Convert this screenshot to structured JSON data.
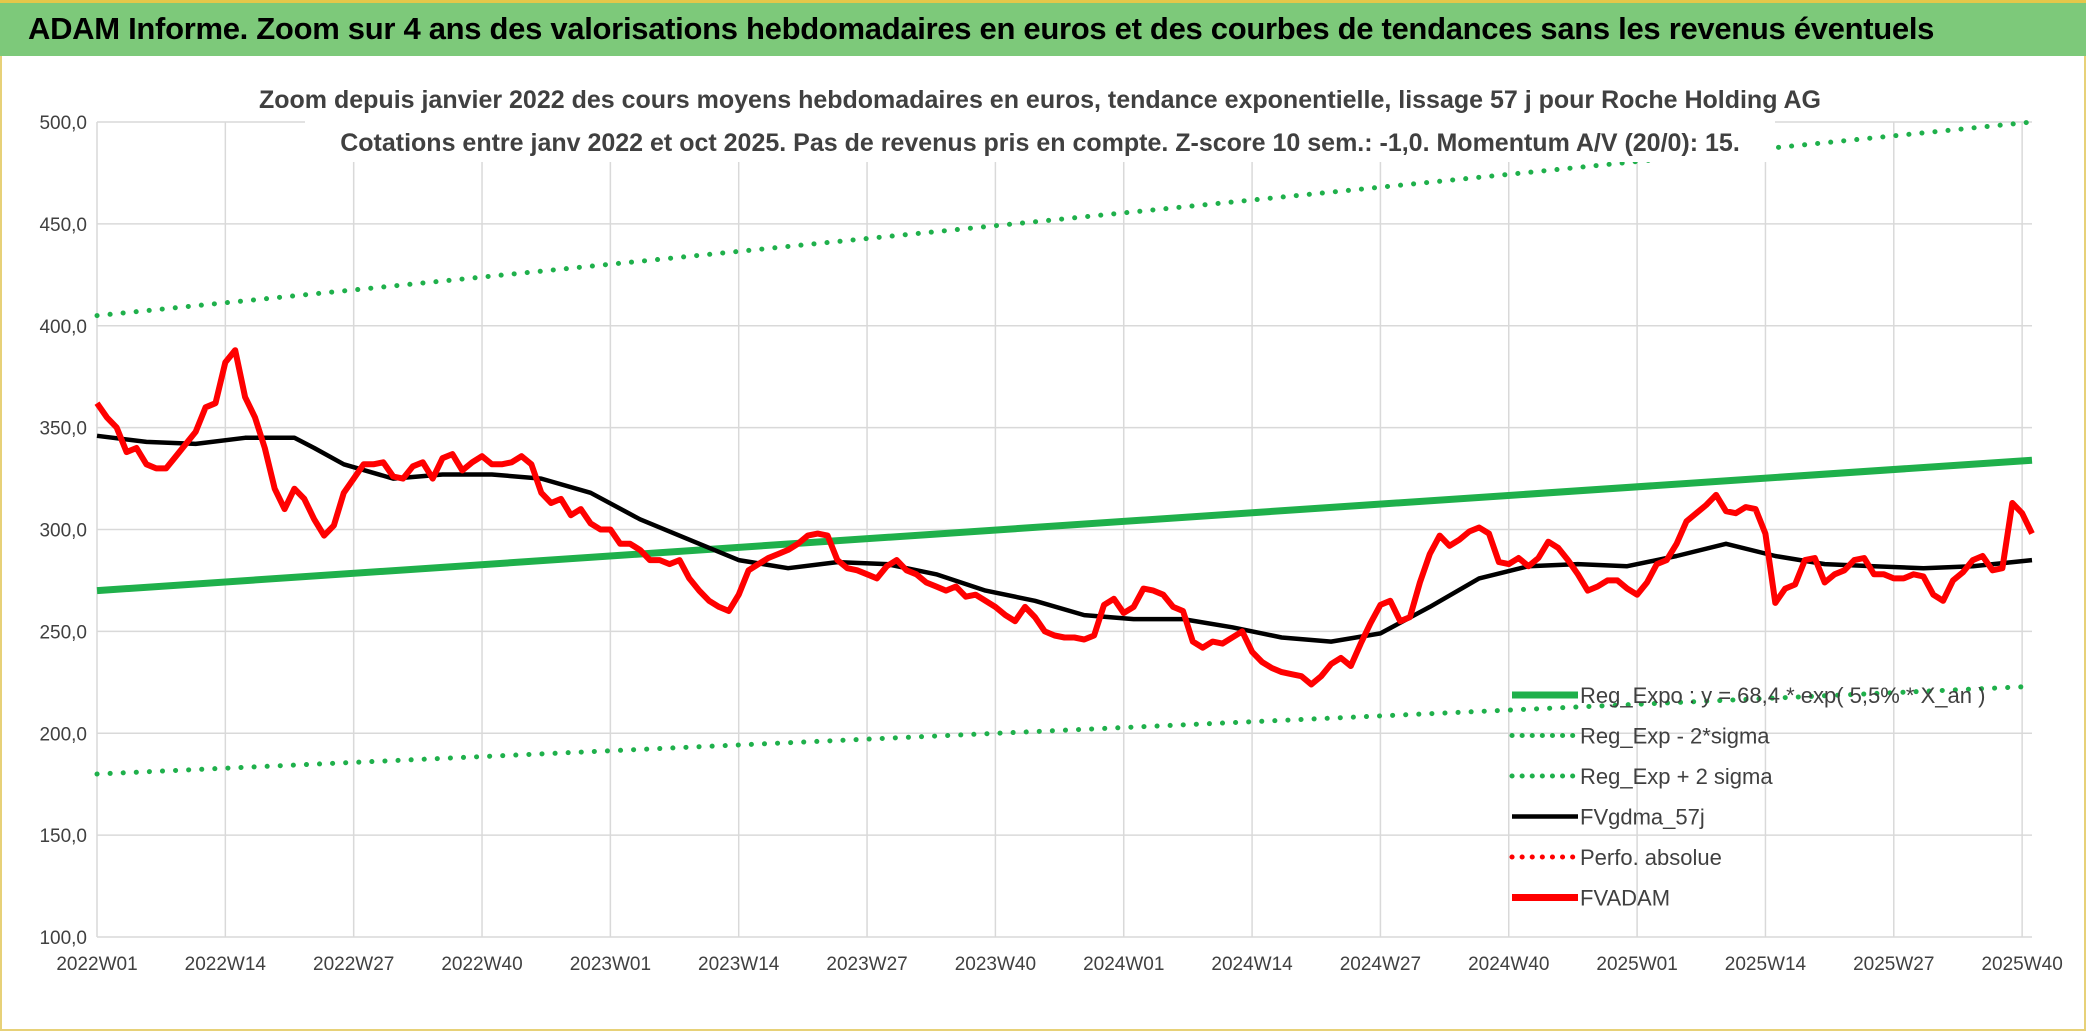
{
  "banner": {
    "title": "ADAM Informe. Zoom sur 4 ans des valorisations hebdomadaires en euros et des courbes de tendances sans les revenus éventuels"
  },
  "colors": {
    "banner": "#7dc97a",
    "reg_expo": "#1fb04b",
    "price": "#ff0000",
    "smooth": "#000000",
    "grid": "#d9d9d9"
  },
  "chart_data": {
    "type": "line",
    "title": "Zoom depuis janvier 2022 des cours moyens hebdomadaires en euros, tendance exponentielle, lissage 57 j pour Roche Holding AG",
    "subtitle": "Cotations entre janv 2022 et oct 2025. Pas de revenus pris en compte. Z-score 10 sem.: -1,0. Momentum A/V (20/0): 15.",
    "xlabel": "",
    "ylabel": "",
    "x_categories": [
      "2022W01",
      "2022W14",
      "2022W27",
      "2022W40",
      "2023W01",
      "2023W14",
      "2023W27",
      "2023W40",
      "2024W01",
      "2024W14",
      "2024W27",
      "2024W40",
      "2025W01",
      "2025W14",
      "2025W27",
      "2025W40"
    ],
    "x_range_weeks": [
      0,
      196
    ],
    "ylim": [
      100,
      500
    ],
    "yticks": [
      "100,0",
      "150,0",
      "200,0",
      "250,0",
      "300,0",
      "350,0",
      "400,0",
      "450,0",
      "500,0"
    ],
    "grid": true,
    "legend_position": "bottom-right",
    "legend": [
      {
        "label": "Reg_Expo : y = 68,4 * exp( 5,5% * X_an )",
        "style": "solid-thick",
        "color": "#1fb04b"
      },
      {
        "label": "Reg_Exp - 2*sigma",
        "style": "dotted",
        "color": "#1fb04b"
      },
      {
        "label": "Reg_Exp + 2 sigma",
        "style": "dotted",
        "color": "#1fb04b"
      },
      {
        "label": "FVgdma_57j",
        "style": "solid",
        "color": "#000000"
      },
      {
        "label": "Perfo. absolue",
        "style": "dotted",
        "color": "#ff0000"
      },
      {
        "label": "FVADAM",
        "style": "solid-thick",
        "color": "#ff0000"
      }
    ],
    "series": [
      {
        "name": "Reg_Expo : y = 68,4 * exp( 5,5% * X_an )",
        "x": [
          0,
          196
        ],
        "values": [
          270,
          334
        ]
      },
      {
        "name": "Reg_Exp - 2*sigma",
        "x": [
          0,
          196
        ],
        "values": [
          180,
          223
        ]
      },
      {
        "name": "Reg_Exp + 2 sigma",
        "x": [
          0,
          196
        ],
        "values": [
          405,
          500
        ]
      },
      {
        "name": "FVgdma_57j",
        "x": [
          0,
          5,
          10,
          15,
          20,
          22,
          25,
          30,
          35,
          40,
          45,
          50,
          55,
          60,
          65,
          70,
          75,
          80,
          85,
          90,
          95,
          100,
          105,
          110,
          115,
          120,
          125,
          130,
          135,
          140,
          145,
          150,
          155,
          160,
          165,
          170,
          175,
          180,
          185,
          190,
          196
        ],
        "values": [
          346,
          343,
          342,
          345,
          345,
          340,
          332,
          325,
          327,
          327,
          325,
          318,
          305,
          295,
          285,
          281,
          284,
          283,
          278,
          270,
          265,
          258,
          256,
          256,
          252,
          247,
          245,
          249,
          262,
          276,
          282,
          283,
          282,
          287,
          293,
          287,
          283,
          282,
          281,
          282,
          285
        ]
      },
      {
        "name": "FVADAM",
        "x": [
          0,
          1,
          2,
          3,
          4,
          5,
          6,
          7,
          8,
          9,
          10,
          11,
          12,
          13,
          14,
          15,
          16,
          17,
          18,
          19,
          20,
          21,
          22,
          23,
          24,
          25,
          26,
          27,
          28,
          29,
          30,
          31,
          32,
          33,
          34,
          35,
          36,
          37,
          38,
          39,
          40,
          41,
          42,
          43,
          44,
          45,
          46,
          47,
          48,
          49,
          50,
          51,
          52,
          53,
          54,
          55,
          56,
          57,
          58,
          59,
          60,
          61,
          62,
          63,
          64,
          65,
          66,
          67,
          68,
          69,
          70,
          71,
          72,
          73,
          74,
          75,
          76,
          77,
          78,
          79,
          80,
          81,
          82,
          83,
          84,
          85,
          86,
          87,
          88,
          89,
          90,
          91,
          92,
          93,
          94,
          95,
          96,
          97,
          98,
          99,
          100,
          101,
          102,
          103,
          104,
          105,
          106,
          107,
          108,
          109,
          110,
          111,
          112,
          113,
          114,
          115,
          116,
          117,
          118,
          119,
          120,
          121,
          122,
          123,
          124,
          125,
          126,
          127,
          128,
          129,
          130,
          131,
          132,
          133,
          134,
          135,
          136,
          137,
          138,
          139,
          140,
          141,
          142,
          143,
          144,
          145,
          146,
          147,
          148,
          149,
          150,
          151,
          152,
          153,
          154,
          155,
          156,
          157,
          158,
          159,
          160,
          161,
          162,
          163,
          164,
          165,
          166,
          167,
          168,
          169,
          170,
          171,
          172,
          173,
          174,
          175,
          176,
          177,
          178,
          179,
          180,
          181,
          182,
          183,
          184,
          185,
          186,
          187,
          188,
          189,
          190,
          191,
          192,
          193,
          194,
          195,
          196
        ],
        "values": [
          362,
          355,
          350,
          338,
          340,
          332,
          330,
          330,
          336,
          342,
          348,
          360,
          362,
          382,
          388,
          365,
          355,
          340,
          320,
          310,
          320,
          315,
          305,
          297,
          302,
          318,
          325,
          332,
          332,
          333,
          326,
          325,
          331,
          333,
          325,
          335,
          337,
          329,
          333,
          336,
          332,
          332,
          333,
          336,
          332,
          318,
          313,
          315,
          307,
          310,
          303,
          300,
          300,
          293,
          293,
          290,
          285,
          285,
          283,
          285,
          276,
          270,
          265,
          262,
          260,
          268,
          280,
          283,
          286,
          288,
          290,
          293,
          297,
          298,
          297,
          285,
          281,
          280,
          278,
          276,
          282,
          285,
          280,
          278,
          274,
          272,
          270,
          272,
          267,
          268,
          265,
          262,
          258,
          255,
          262,
          257,
          250,
          248,
          247,
          247,
          246,
          248,
          263,
          266,
          259,
          262,
          271,
          270,
          268,
          262,
          260,
          245,
          242,
          245,
          244,
          247,
          250,
          240,
          235,
          232,
          230,
          229,
          228,
          224,
          228,
          234,
          237,
          233,
          244,
          254,
          263,
          265,
          255,
          257,
          274,
          288,
          297,
          292,
          295,
          299,
          301,
          298,
          284,
          283,
          286,
          282,
          286,
          294,
          291,
          285,
          278,
          270,
          272,
          275,
          275,
          271,
          268,
          274,
          283,
          285,
          293,
          304,
          308,
          312,
          317,
          309,
          308,
          311,
          310,
          298,
          264,
          271,
          273,
          285,
          286,
          274,
          278,
          280,
          285,
          286,
          278,
          278,
          276,
          276,
          278,
          277,
          268,
          265,
          275,
          279,
          285,
          287,
          280,
          281,
          313,
          308,
          298
        ]
      }
    ]
  }
}
